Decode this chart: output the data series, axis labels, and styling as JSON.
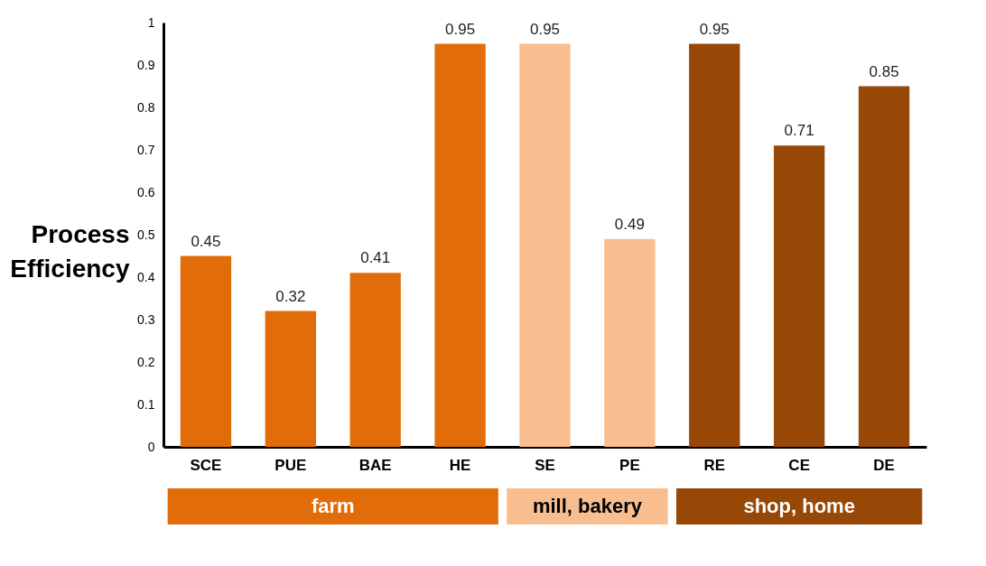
{
  "chart_data": {
    "type": "bar",
    "ylabel": "Process Efficiency",
    "categories": [
      "SCE",
      "PUE",
      "BAE",
      "HE",
      "SE",
      "PE",
      "RE",
      "CE",
      "DE"
    ],
    "series": [
      {
        "name": "farm",
        "color": "#e36c0a",
        "values": [
          0.45,
          0.32,
          0.41,
          0.95,
          null,
          null,
          null,
          null,
          null
        ]
      },
      {
        "name": "mill, bakery",
        "color": "#f9be8f",
        "values": [
          null,
          null,
          null,
          null,
          0.95,
          0.49,
          null,
          null,
          null
        ]
      },
      {
        "name": "shop, home",
        "color": "#974706",
        "values": [
          null,
          null,
          null,
          null,
          null,
          null,
          0.95,
          0.71,
          0.85
        ]
      }
    ],
    "ylim": [
      0,
      1
    ],
    "yticks": [
      0,
      0.1,
      0.2,
      0.3,
      0.4,
      0.5,
      0.6,
      0.7,
      0.8,
      0.9,
      1
    ],
    "data_labels": true,
    "legend": "bottom"
  }
}
